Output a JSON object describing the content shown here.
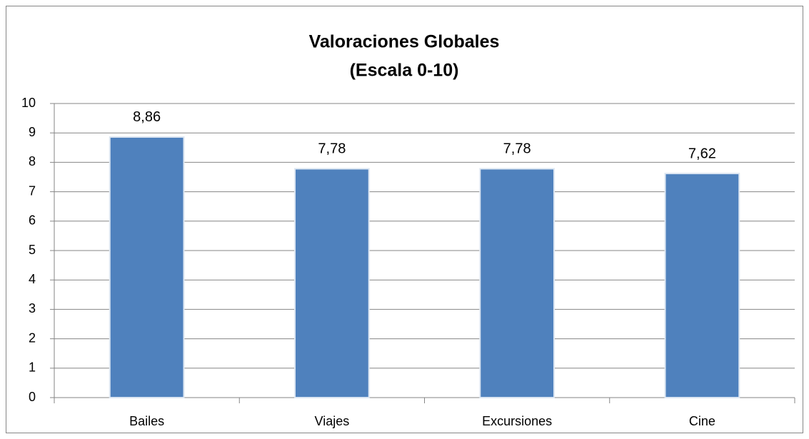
{
  "chart_data": {
    "type": "bar",
    "title": "Valoraciones Globales",
    "subtitle": "(Escala 0-10)",
    "categories": [
      "Bailes",
      "Viajes",
      "Excursiones",
      "Cine"
    ],
    "values": [
      8.86,
      7.78,
      7.78,
      7.62
    ],
    "value_labels": [
      "8,86",
      "7,78",
      "7,78",
      "7,62"
    ],
    "color": "#4f81bd",
    "ylim": [
      0,
      10
    ],
    "yticks": [
      0,
      1,
      2,
      3,
      4,
      5,
      6,
      7,
      8,
      9,
      10
    ],
    "grid": true
  }
}
